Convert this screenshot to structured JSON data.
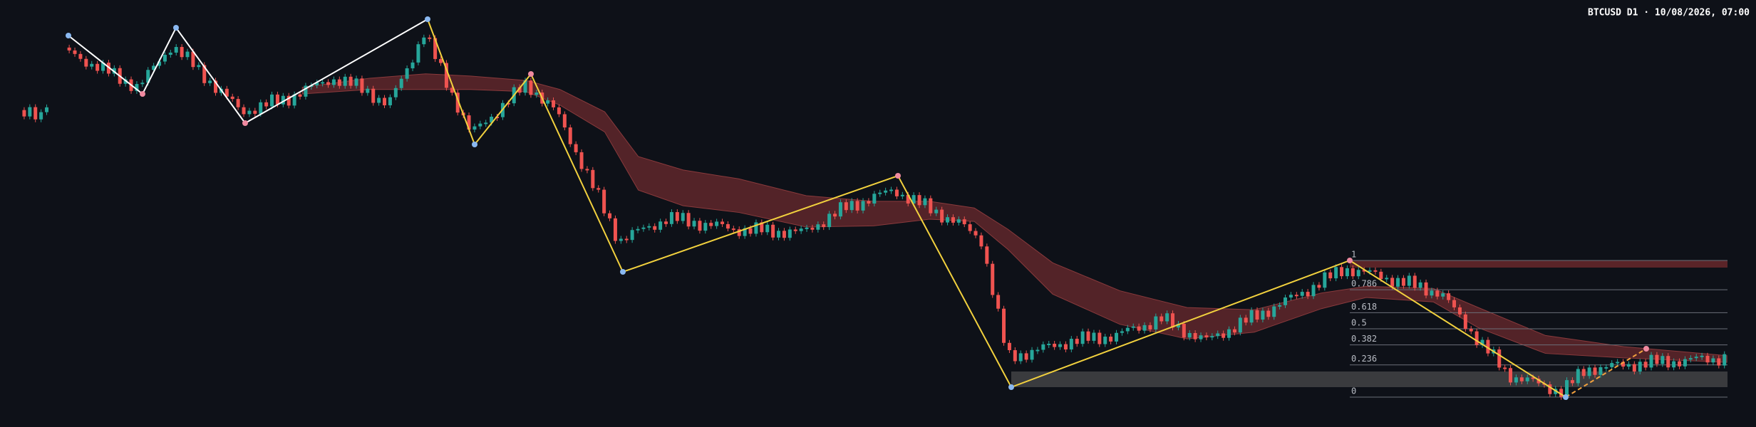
{
  "chart_data": {
    "type": "candlestick",
    "title": "BTCUSD D1 · 10/08/2026, 07:00",
    "fib_levels": [
      1,
      0.786,
      0.618,
      0.5,
      0.382,
      0.236,
      0
    ]
  }
}
